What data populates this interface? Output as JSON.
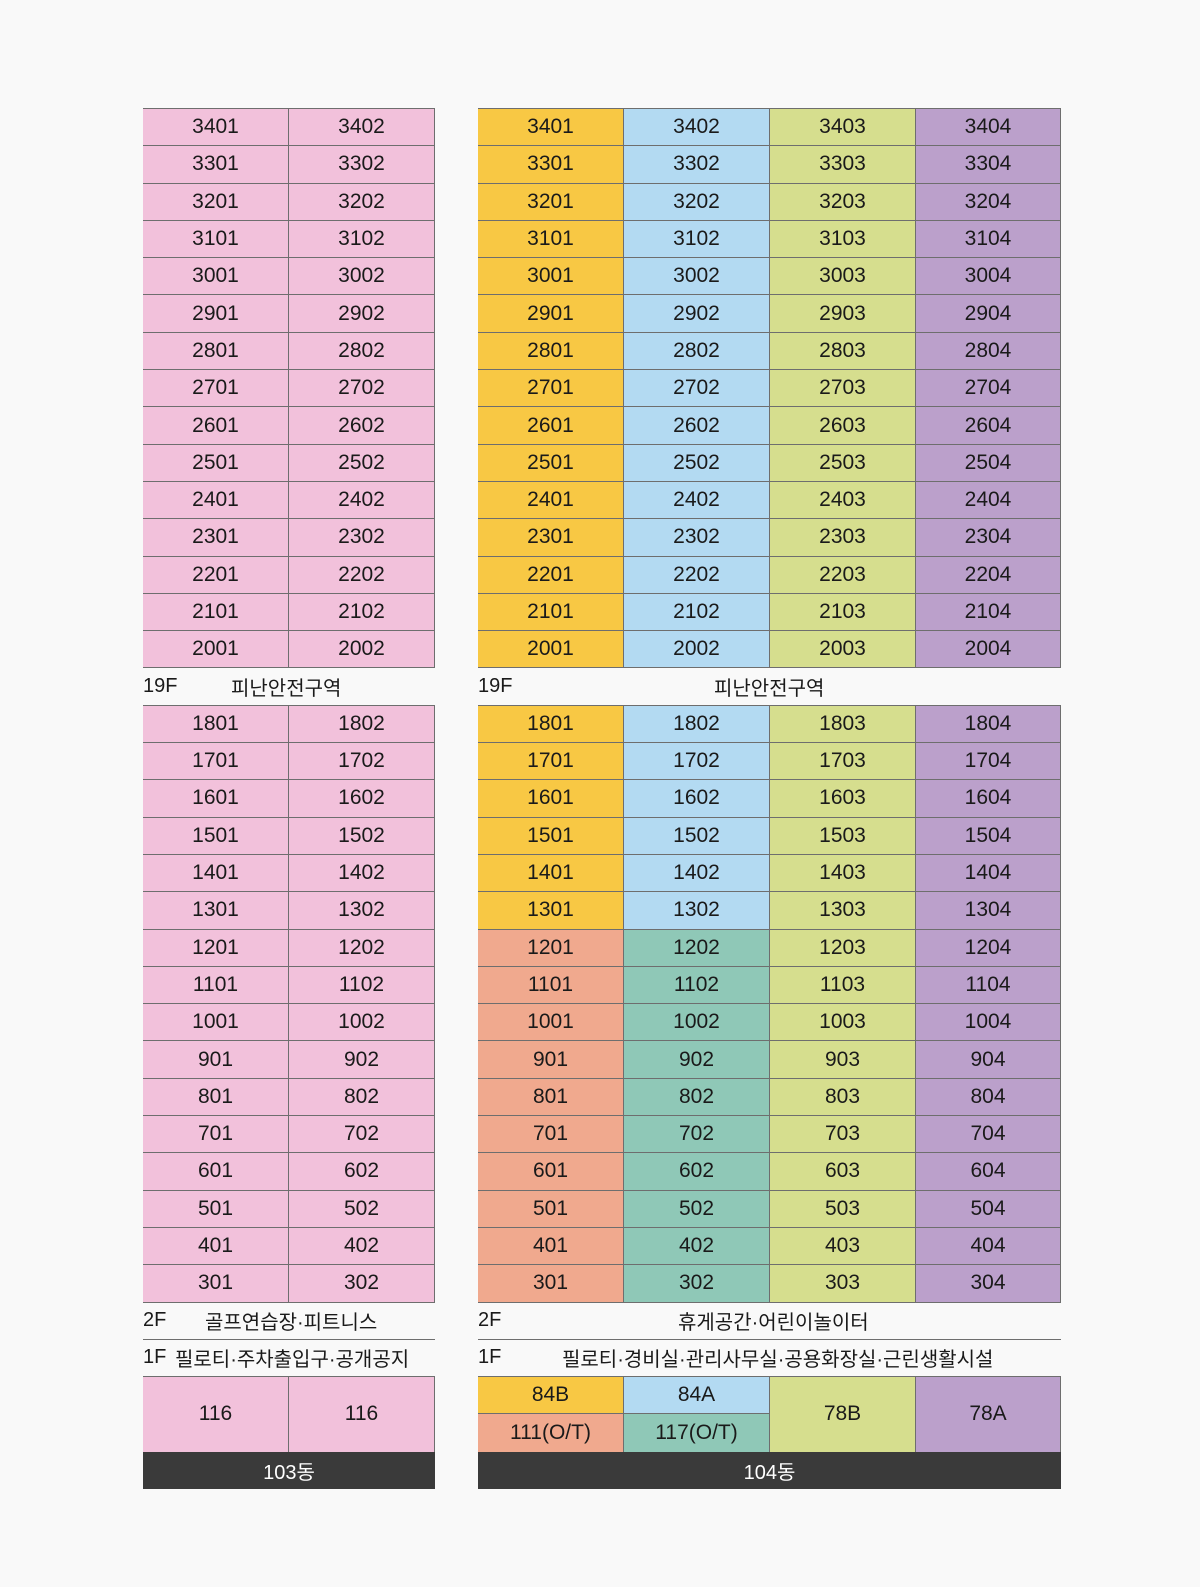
{
  "b103": {
    "upper": [
      [
        "3401",
        "3402"
      ],
      [
        "3301",
        "3302"
      ],
      [
        "3201",
        "3202"
      ],
      [
        "3101",
        "3102"
      ],
      [
        "3001",
        "3002"
      ],
      [
        "2901",
        "2902"
      ],
      [
        "2801",
        "2802"
      ],
      [
        "2701",
        "2702"
      ],
      [
        "2601",
        "2602"
      ],
      [
        "2501",
        "2502"
      ],
      [
        "2401",
        "2402"
      ],
      [
        "2301",
        "2302"
      ],
      [
        "2201",
        "2202"
      ],
      [
        "2101",
        "2102"
      ],
      [
        "2001",
        "2002"
      ]
    ],
    "floor19": {
      "floor": "19F",
      "desc": "피난안전구역"
    },
    "lower": [
      [
        "1801",
        "1802"
      ],
      [
        "1701",
        "1702"
      ],
      [
        "1601",
        "1602"
      ],
      [
        "1501",
        "1502"
      ],
      [
        "1401",
        "1402"
      ],
      [
        "1301",
        "1302"
      ],
      [
        "1201",
        "1202"
      ],
      [
        "1101",
        "1102"
      ],
      [
        "1001",
        "1002"
      ],
      [
        "901",
        "902"
      ],
      [
        "801",
        "802"
      ],
      [
        "701",
        "702"
      ],
      [
        "601",
        "602"
      ],
      [
        "501",
        "502"
      ],
      [
        "401",
        "402"
      ],
      [
        "301",
        "302"
      ]
    ],
    "floor2": {
      "floor": "2F",
      "desc": "골프연습장·피트니스"
    },
    "floor1": {
      "floor": "1F",
      "desc": "필로티·주차출입구·공개공지"
    },
    "areas": [
      "116",
      "116"
    ],
    "name": "103동",
    "color": "#f2c1db"
  },
  "b104": {
    "upper": [
      [
        "3401",
        "3402",
        "3403",
        "3404"
      ],
      [
        "3301",
        "3302",
        "3303",
        "3304"
      ],
      [
        "3201",
        "3202",
        "3203",
        "3204"
      ],
      [
        "3101",
        "3102",
        "3103",
        "3104"
      ],
      [
        "3001",
        "3002",
        "3003",
        "3004"
      ],
      [
        "2901",
        "2902",
        "2903",
        "2904"
      ],
      [
        "2801",
        "2802",
        "2803",
        "2804"
      ],
      [
        "2701",
        "2702",
        "2703",
        "2704"
      ],
      [
        "2601",
        "2602",
        "2603",
        "2604"
      ],
      [
        "2501",
        "2502",
        "2503",
        "2504"
      ],
      [
        "2401",
        "2402",
        "2403",
        "2404"
      ],
      [
        "2301",
        "2302",
        "2303",
        "2304"
      ],
      [
        "2201",
        "2202",
        "2203",
        "2204"
      ],
      [
        "2101",
        "2102",
        "2103",
        "2104"
      ],
      [
        "2001",
        "2002",
        "2003",
        "2004"
      ]
    ],
    "floor19": {
      "floor": "19F",
      "desc": "피난안전구역"
    },
    "lower": [
      [
        "1801",
        "1802",
        "1803",
        "1804"
      ],
      [
        "1701",
        "1702",
        "1703",
        "1704"
      ],
      [
        "1601",
        "1602",
        "1603",
        "1604"
      ],
      [
        "1501",
        "1502",
        "1503",
        "1504"
      ],
      [
        "1401",
        "1402",
        "1403",
        "1404"
      ],
      [
        "1301",
        "1302",
        "1303",
        "1304"
      ],
      [
        "1201",
        "1202",
        "1203",
        "1204"
      ],
      [
        "1101",
        "1102",
        "1103",
        "1104"
      ],
      [
        "1001",
        "1002",
        "1003",
        "1004"
      ],
      [
        "901",
        "902",
        "903",
        "904"
      ],
      [
        "801",
        "802",
        "803",
        "804"
      ],
      [
        "701",
        "702",
        "703",
        "704"
      ],
      [
        "601",
        "602",
        "603",
        "604"
      ],
      [
        "501",
        "502",
        "503",
        "504"
      ],
      [
        "401",
        "402",
        "403",
        "404"
      ],
      [
        "301",
        "302",
        "303",
        "304"
      ]
    ],
    "lower_split_floor": "1301",
    "floor2": {
      "floor": "2F",
      "desc": "휴게공간·어린이놀이터"
    },
    "floor1": {
      "floor": "1F",
      "desc": "필로티·경비실·관리사무실·공용화장실·근린생활시설"
    },
    "areas": {
      "col1_top": "84B",
      "col1_bottom": "111(O/T)",
      "col2_top": "84A",
      "col2_bottom": "117(O/T)",
      "col3": "78B",
      "col4": "78A"
    },
    "name": "104동",
    "colors": {
      "84B": "#f8c844",
      "84A": "#b3daf2",
      "78B": "#d6de8e",
      "78A": "#bba0cb",
      "111(O/T)": "#f0a98e",
      "117(O/T)": "#8fc8b7"
    }
  }
}
